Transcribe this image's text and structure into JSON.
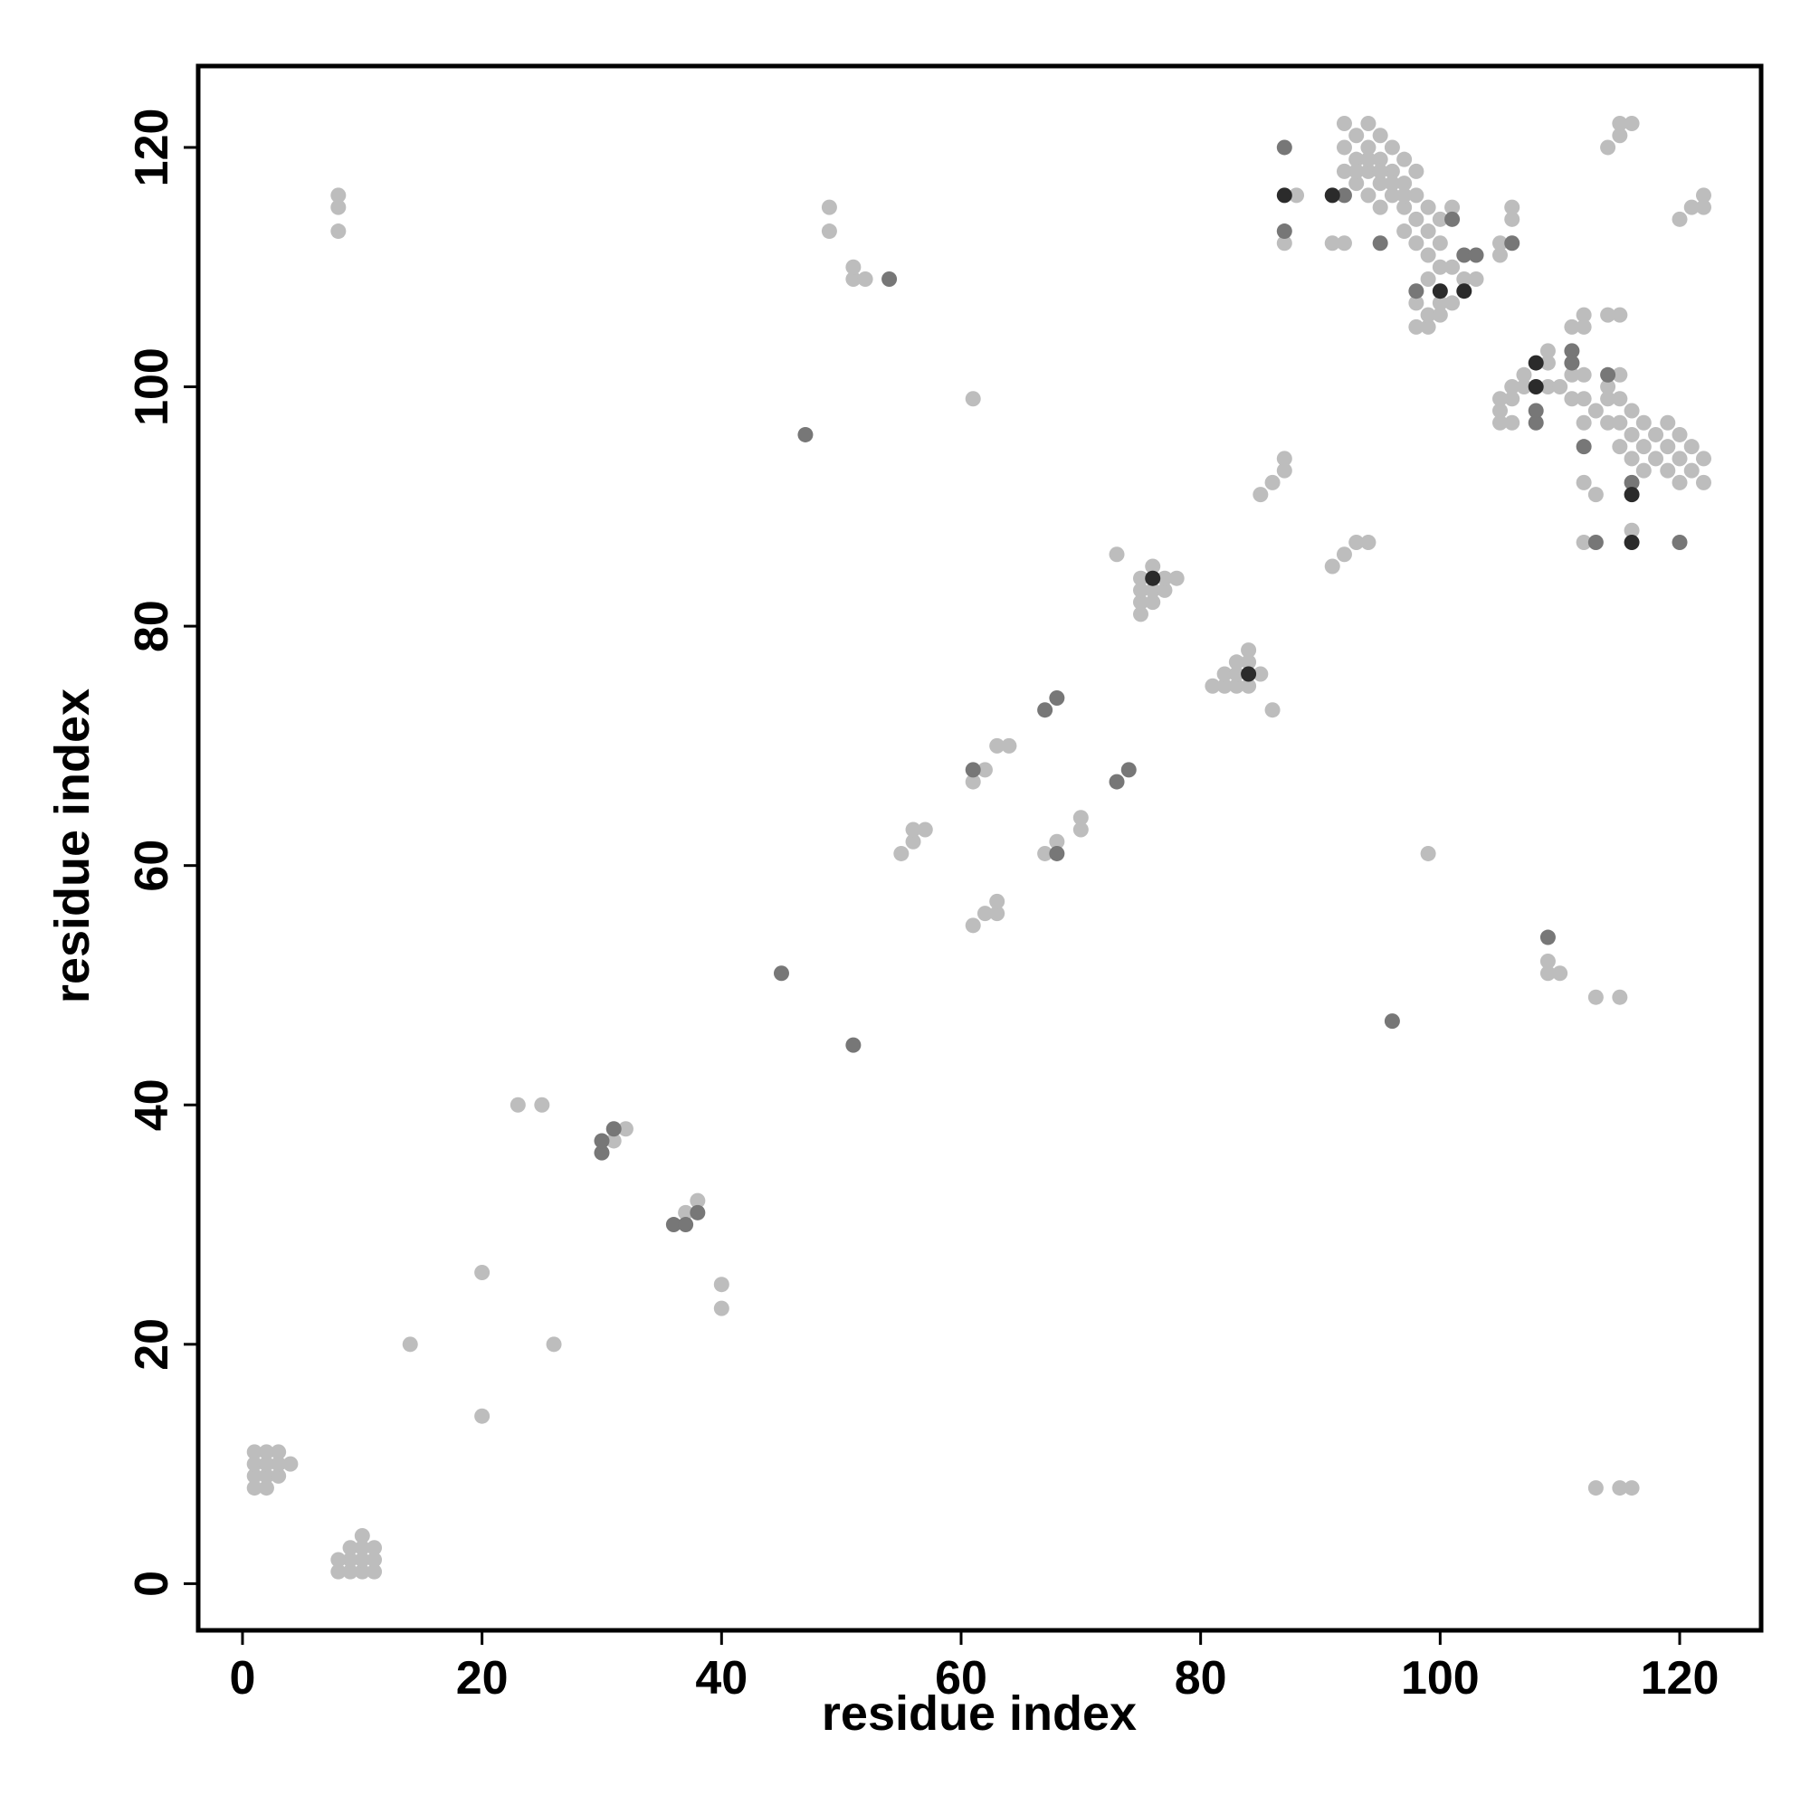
{
  "chart_data": {
    "type": "scatter",
    "xlabel": "residue index",
    "ylabel": "residue index",
    "xlim": [
      -3.7,
      126.8
    ],
    "ylim": [
      -3.9,
      126.8
    ],
    "xticks": [
      0,
      20,
      40,
      60,
      80,
      100,
      120
    ],
    "yticks": [
      0,
      20,
      40,
      60,
      80,
      100,
      120
    ],
    "series": [
      {
        "color": "#bdbdbd",
        "x": [
          1,
          2,
          1,
          3,
          1,
          2,
          3,
          4,
          1,
          2,
          3,
          2,
          8,
          9,
          10,
          11,
          9,
          10,
          11,
          9,
          10,
          11,
          10,
          8,
          14,
          20,
          20,
          26,
          23,
          25,
          40,
          40,
          31,
          32,
          37,
          38,
          8,
          8,
          8,
          49,
          49,
          51,
          51,
          52,
          55,
          56,
          56,
          57,
          61,
          62,
          63,
          63,
          61,
          62,
          63,
          64,
          67,
          68,
          70,
          70,
          61,
          99,
          73,
          75,
          75,
          75,
          75,
          76,
          76,
          76,
          77,
          77,
          78,
          81,
          82,
          82,
          83,
          83,
          83,
          84,
          84,
          84,
          85,
          86,
          85,
          86,
          87,
          87,
          91,
          92,
          93,
          94,
          87,
          88,
          91,
          92,
          92,
          92,
          92,
          93,
          93,
          93,
          94,
          94,
          94,
          94,
          95,
          95,
          95,
          95,
          96,
          96,
          96,
          97,
          97,
          97,
          97,
          98,
          98,
          98,
          98,
          99,
          99,
          99,
          100,
          100,
          101,
          93,
          94,
          95,
          96,
          97,
          98,
          98,
          99,
          99,
          99,
          100,
          100,
          101,
          101,
          102,
          103,
          100,
          105,
          105,
          106,
          106,
          114,
          115,
          115,
          116,
          120,
          121,
          122,
          122,
          105,
          105,
          105,
          106,
          106,
          106,
          107,
          107,
          109,
          109,
          109,
          110,
          111,
          111,
          111,
          112,
          112,
          112,
          112,
          112,
          113,
          114,
          114,
          114,
          114,
          115,
          115,
          115,
          115,
          115,
          116,
          116,
          116,
          117,
          117,
          117,
          118,
          118,
          119,
          119,
          119,
          120,
          120,
          120,
          121,
          121,
          122,
          122,
          112,
          113,
          116,
          112,
          109,
          109,
          110,
          113,
          115,
          113,
          115,
          116
        ],
        "values": [
          8,
          9,
          9,
          9,
          10,
          10,
          10,
          10,
          11,
          11,
          11,
          8,
          1,
          1,
          1,
          1,
          2,
          2,
          2,
          3,
          3,
          3,
          4,
          2,
          20,
          14,
          26,
          20,
          40,
          40,
          23,
          25,
          37,
          38,
          31,
          32,
          113,
          115,
          116,
          113,
          115,
          109,
          110,
          109,
          61,
          62,
          63,
          63,
          55,
          56,
          56,
          57,
          67,
          68,
          70,
          70,
          61,
          62,
          63,
          64,
          99,
          61,
          86,
          81,
          82,
          83,
          84,
          82,
          83,
          85,
          83,
          84,
          84,
          75,
          75,
          76,
          75,
          76,
          77,
          75,
          77,
          78,
          76,
          73,
          91,
          92,
          93,
          94,
          85,
          86,
          87,
          87,
          112,
          116,
          112,
          112,
          118,
          120,
          122,
          117,
          119,
          121,
          116,
          118,
          120,
          122,
          115,
          117,
          119,
          121,
          116,
          118,
          120,
          113,
          115,
          117,
          119,
          112,
          114,
          116,
          118,
          111,
          113,
          115,
          112,
          114,
          115,
          118,
          119,
          118,
          117,
          116,
          105,
          107,
          105,
          106,
          109,
          106,
          107,
          107,
          110,
          109,
          109,
          110,
          111,
          112,
          114,
          115,
          120,
          121,
          122,
          122,
          114,
          115,
          115,
          116,
          97,
          98,
          99,
          97,
          99,
          100,
          100,
          101,
          100,
          102,
          103,
          100,
          99,
          101,
          105,
          105,
          106,
          97,
          99,
          101,
          98,
          97,
          99,
          100,
          106,
          106,
          95,
          97,
          99,
          101,
          94,
          96,
          98,
          93,
          95,
          97,
          94,
          96,
          93,
          95,
          97,
          92,
          94,
          96,
          93,
          95,
          92,
          94,
          92,
          91,
          88,
          87,
          52,
          51,
          51,
          49,
          49,
          8,
          8,
          8
        ]
      },
      {
        "color": "#777777",
        "x": [
          30,
          30,
          31,
          36,
          37,
          38,
          45,
          51,
          47,
          54,
          61,
          68,
          67,
          68,
          73,
          74,
          87,
          87,
          92,
          95,
          98,
          101,
          102,
          103,
          106,
          108,
          108,
          111,
          111,
          112,
          114,
          116,
          113,
          120,
          109,
          96
        ],
        "values": [
          36,
          37,
          38,
          30,
          30,
          31,
          51,
          45,
          96,
          109,
          68,
          61,
          73,
          74,
          67,
          68,
          113,
          120,
          116,
          112,
          108,
          114,
          111,
          111,
          112,
          97,
          98,
          103,
          102,
          95,
          101,
          92,
          87,
          87,
          54,
          47
        ]
      },
      {
        "color": "#2b2b2b",
        "x": [
          76,
          84,
          87,
          91,
          100,
          102,
          108,
          108,
          116,
          116
        ],
        "values": [
          84,
          76,
          116,
          116,
          108,
          108,
          100,
          102,
          91,
          87
        ]
      }
    ]
  }
}
